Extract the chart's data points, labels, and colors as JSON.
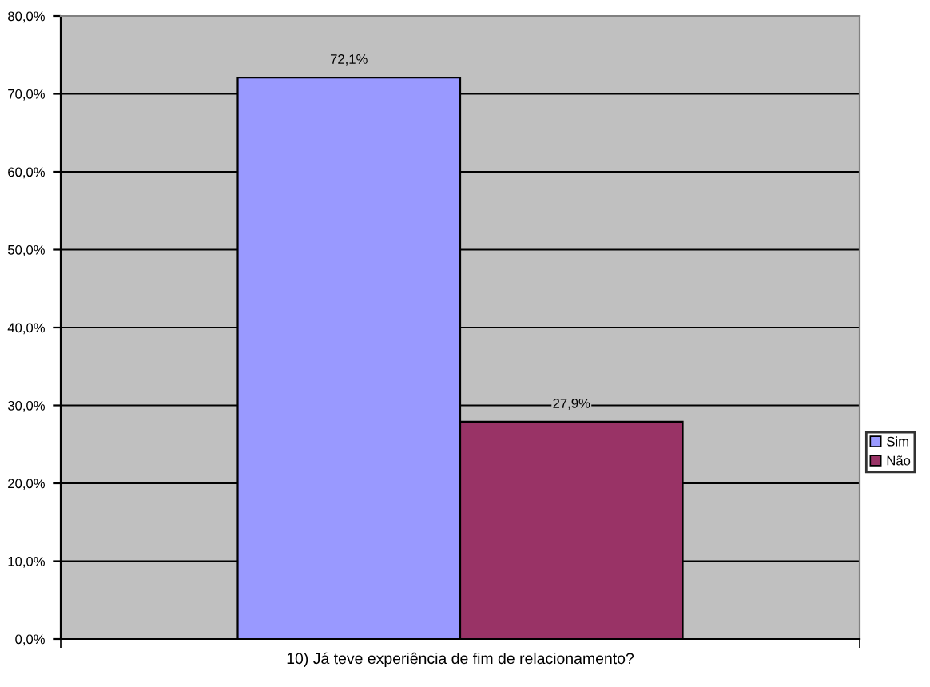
{
  "chart_data": {
    "type": "bar",
    "categories": [
      "10) Já teve experiência de fim de relacionamento?"
    ],
    "series": [
      {
        "name": "Sim",
        "color": "#9999ff",
        "values": [
          72.1
        ],
        "value_labels": [
          "72,1%"
        ]
      },
      {
        "name": "Não",
        "color": "#993366",
        "values": [
          27.9
        ],
        "value_labels": [
          "27,9%"
        ]
      }
    ],
    "ylim": [
      0,
      80
    ],
    "yticks": [
      {
        "value": 0,
        "label": "0,0%"
      },
      {
        "value": 10,
        "label": "10,0%"
      },
      {
        "value": 20,
        "label": "20,0%"
      },
      {
        "value": 30,
        "label": "30,0%"
      },
      {
        "value": 40,
        "label": "40,0%"
      },
      {
        "value": 50,
        "label": "50,0%"
      },
      {
        "value": 60,
        "label": "60,0%"
      },
      {
        "value": 70,
        "label": "70,0%"
      },
      {
        "value": 80,
        "label": "80,0%"
      }
    ],
    "grid": "y",
    "legend": "right"
  }
}
